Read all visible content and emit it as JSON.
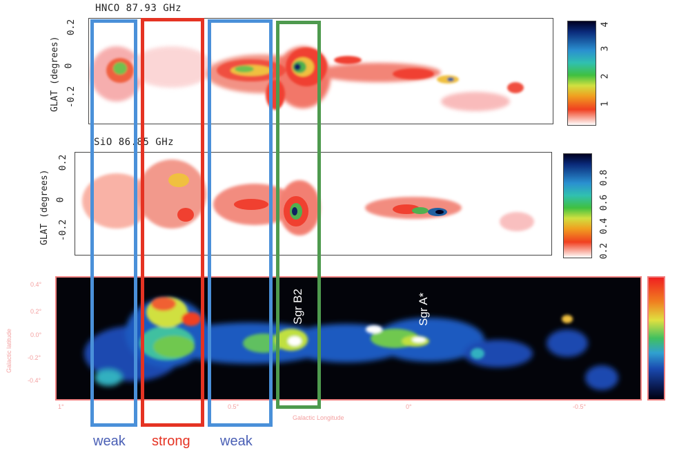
{
  "panels": {
    "top": {
      "title": "HNCO 87.93 GHz",
      "ylabel": "GLAT (degrees)",
      "yticks": [
        "0.2",
        "0",
        "-0.2"
      ],
      "colorbar_ticks": [
        "4",
        "3",
        "2",
        "1"
      ]
    },
    "middle": {
      "title": "SiO 86.85 GHz",
      "ylabel": "GLAT (degrees)",
      "yticks": [
        "0.2",
        "0",
        "-0.2"
      ],
      "colorbar_ticks": [
        "0.8",
        "0.6",
        "0.4",
        "0.2"
      ]
    },
    "bottom": {
      "ylabel": "Galactic latitude",
      "xlabel": "Galactic Longitude",
      "yticks": [
        "0.4°",
        "0.2°",
        "0.0°",
        "-0.2°",
        "-0.4°"
      ],
      "xticks": [
        "1°",
        "0.5°",
        "0°",
        "-0.5°"
      ]
    }
  },
  "annotations": {
    "sgr_b2": "Sgr B2",
    "sgr_a": "Sgr A*"
  },
  "regions": [
    {
      "label": "weak",
      "color": "#4a90d9"
    },
    {
      "label": "strong",
      "color": "#e53323"
    },
    {
      "label": "weak",
      "color": "#4a90d9"
    }
  ],
  "highlight_color": "#4e9a4e",
  "label_colors": {
    "weak": "#4a5fb5",
    "strong": "#e53323"
  }
}
